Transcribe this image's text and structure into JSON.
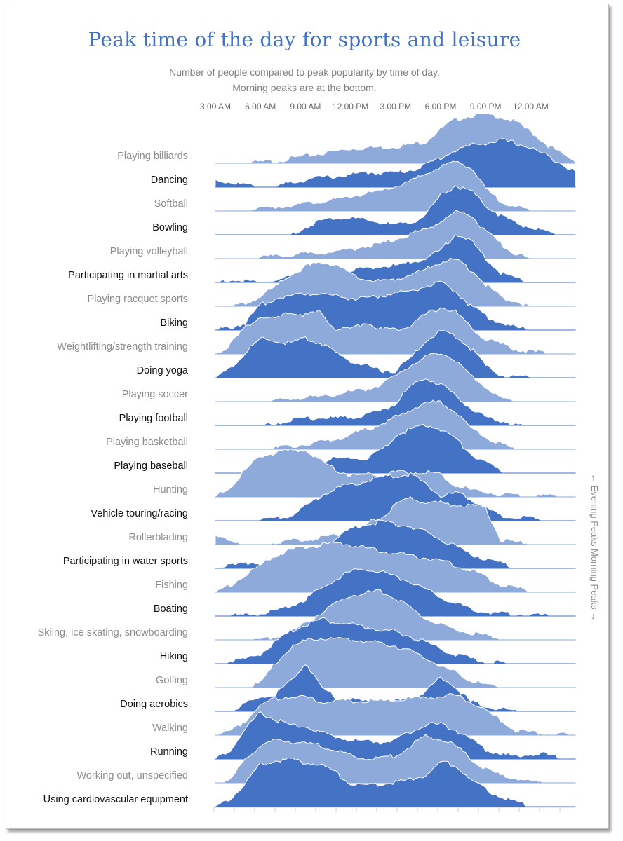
{
  "chart_data": {
    "type": "area",
    "title": "Peak time of the day for sports and leisure",
    "subtitle": [
      "Number of people compared to peak popularity by time of day.",
      "Morning peaks are at the bottom."
    ],
    "x_tick_labels": [
      "3.00 AM",
      "6.00 AM",
      "9.00 AM",
      "12.00 PM",
      "3.00 PM",
      "6.00 PM",
      "9.00 PM",
      "12.00 AM"
    ],
    "x_hours_from_3am": [
      0,
      1,
      2,
      3,
      4,
      5,
      6,
      7,
      8,
      9,
      10,
      11,
      12,
      13,
      14,
      15,
      16,
      17,
      18,
      19,
      20,
      21,
      22,
      23,
      24
    ],
    "xlim_hours_from_3am": [
      0,
      24
    ],
    "side_label": "← Evening Peaks  Morning Peaks →",
    "colors": {
      "light": "#8eaadb",
      "dark": "#4472c4"
    },
    "series": [
      {
        "name": "Playing billiards",
        "values": [
          0,
          0,
          0.02,
          0.02,
          0.05,
          0.1,
          0.15,
          0.2,
          0.25,
          0.3,
          0.32,
          0.33,
          0.35,
          0.38,
          0.45,
          0.7,
          0.9,
          0.97,
          1,
          0.95,
          0.85,
          0.65,
          0.4,
          0.2,
          0.05
        ]
      },
      {
        "name": "Dancing",
        "values": [
          0.15,
          0.1,
          0.05,
          0,
          0,
          0.1,
          0.15,
          0.2,
          0.22,
          0.25,
          0.3,
          0.3,
          0.3,
          0.35,
          0.45,
          0.6,
          0.75,
          0.85,
          0.9,
          0.95,
          0.9,
          0.8,
          0.65,
          0.5,
          0.3
        ]
      },
      {
        "name": "Softball",
        "values": [
          0,
          0,
          0.02,
          0.05,
          0.08,
          0.12,
          0.15,
          0.2,
          0.22,
          0.3,
          0.35,
          0.4,
          0.5,
          0.6,
          0.75,
          0.9,
          1,
          0.9,
          0.45,
          0.2,
          0.1,
          0,
          0,
          0,
          0
        ]
      },
      {
        "name": "Bowling",
        "values": [
          0,
          0,
          0,
          0,
          0,
          0,
          0.15,
          0.3,
          0.35,
          0.35,
          0.3,
          0.25,
          0.2,
          0.25,
          0.4,
          0.8,
          1,
          0.9,
          0.6,
          0.4,
          0.25,
          0.15,
          0.05,
          0,
          0
        ]
      },
      {
        "name": "Playing volleyball",
        "values": [
          0,
          0,
          0,
          0.02,
          0.05,
          0.08,
          0.1,
          0.12,
          0.15,
          0.2,
          0.25,
          0.3,
          0.4,
          0.5,
          0.6,
          0.75,
          0.95,
          0.9,
          0.55,
          0.3,
          0.1,
          0,
          0,
          0,
          0
        ]
      },
      {
        "name": "Participating in martial arts",
        "values": [
          0,
          0.05,
          0.03,
          0,
          0.05,
          0.1,
          0.12,
          0.15,
          0.2,
          0.25,
          0.3,
          0.32,
          0.35,
          0.4,
          0.5,
          0.65,
          1,
          0.85,
          0.5,
          0.2,
          0.1,
          0,
          0,
          0,
          0
        ]
      },
      {
        "name": "Playing racquet sports",
        "values": [
          0,
          0,
          0.05,
          0.2,
          0.4,
          0.65,
          0.8,
          0.9,
          0.85,
          0.65,
          0.55,
          0.5,
          0.55,
          0.65,
          0.75,
          0.9,
          0.95,
          0.75,
          0.45,
          0.2,
          0.1,
          0,
          0,
          0,
          0
        ]
      },
      {
        "name": "Biking",
        "values": [
          0,
          0.05,
          0.15,
          0.5,
          0.65,
          0.7,
          0.75,
          0.75,
          0.7,
          0.65,
          0.65,
          0.7,
          0.75,
          0.8,
          0.9,
          0.95,
          0.8,
          0.5,
          0.3,
          0.15,
          0.05,
          0.02,
          0,
          0,
          0
        ]
      },
      {
        "name": "Weightlifting/strength training",
        "values": [
          0,
          0.2,
          0.55,
          0.75,
          0.7,
          0.85,
          0.8,
          0.85,
          0.5,
          0.5,
          0.65,
          0.5,
          0.5,
          0.6,
          0.8,
          0.95,
          0.85,
          0.55,
          0.3,
          0.2,
          0.1,
          0.05,
          0.02,
          0.01,
          0
        ]
      },
      {
        "name": "Doing yoga",
        "values": [
          0,
          0.2,
          0.5,
          0.8,
          0.75,
          0.7,
          0.8,
          0.7,
          0.5,
          0.35,
          0.25,
          0.15,
          0.15,
          0.4,
          0.75,
          0.95,
          0.85,
          0.6,
          0.25,
          0.05,
          0.02,
          0.01,
          0,
          0,
          0
        ]
      },
      {
        "name": "Playing soccer",
        "values": [
          0,
          0,
          0,
          0,
          0.02,
          0.05,
          0.08,
          0.1,
          0.15,
          0.2,
          0.25,
          0.35,
          0.5,
          0.75,
          0.9,
          1,
          0.85,
          0.55,
          0.3,
          0.05,
          0,
          0,
          0,
          0,
          0
        ]
      },
      {
        "name": "Playing football",
        "values": [
          0,
          0,
          0,
          0,
          0.05,
          0.1,
          0.15,
          0.15,
          0.15,
          0.18,
          0.2,
          0.3,
          0.45,
          0.8,
          0.95,
          0.85,
          0.6,
          0.35,
          0.15,
          0.1,
          0.02,
          0,
          0,
          0,
          0
        ]
      },
      {
        "name": "Playing basketball",
        "values": [
          0,
          0,
          0,
          0,
          0.03,
          0.06,
          0.1,
          0.15,
          0.2,
          0.3,
          0.4,
          0.5,
          0.65,
          0.8,
          0.95,
          0.95,
          0.75,
          0.45,
          0.25,
          0.1,
          0,
          0,
          0,
          0,
          0
        ]
      },
      {
        "name": "Playing baseball",
        "values": [
          0,
          0,
          0,
          0,
          0,
          0.1,
          0.2,
          0.25,
          0.3,
          0.3,
          0.3,
          0.45,
          0.75,
          0.9,
          1,
          0.9,
          0.7,
          0.4,
          0.2,
          0.05,
          0,
          0,
          0,
          0,
          0
        ]
      },
      {
        "name": "Hunting",
        "values": [
          0,
          0.2,
          0.55,
          0.85,
          0.9,
          0.95,
          0.95,
          0.75,
          0.55,
          0.45,
          0.45,
          0.45,
          0.5,
          0.5,
          0.5,
          0.45,
          0.25,
          0.15,
          0.1,
          0.05,
          0.03,
          0.02,
          0.02,
          0.01,
          0
        ]
      },
      {
        "name": "Vehicle touring/racing",
        "values": [
          0,
          0,
          0,
          0.02,
          0.05,
          0.1,
          0.3,
          0.5,
          0.65,
          0.75,
          0.8,
          0.9,
          0.9,
          0.95,
          0.75,
          0.5,
          0.55,
          0.45,
          0.25,
          0.1,
          0.08,
          0.05,
          0.02,
          0,
          0
        ]
      },
      {
        "name": "Rollerblading",
        "values": [
          0.15,
          0.1,
          0,
          0,
          0.05,
          0.08,
          0.1,
          0.15,
          0.2,
          0.25,
          0.4,
          0.55,
          0.8,
          0.95,
          0.85,
          0.85,
          0.8,
          0.8,
          0.75,
          0.1,
          0.05,
          0.02,
          0,
          0,
          0
        ]
      },
      {
        "name": "Participating in water sports",
        "values": [
          0,
          0.05,
          0.1,
          0.12,
          0.15,
          0.2,
          0.3,
          0.45,
          0.6,
          0.8,
          0.9,
          0.95,
          0.9,
          0.85,
          0.75,
          0.6,
          0.45,
          0.3,
          0.2,
          0.1,
          0,
          0,
          0,
          0,
          0
        ]
      },
      {
        "name": "Fishing",
        "values": [
          0,
          0.15,
          0.35,
          0.55,
          0.75,
          0.85,
          0.92,
          0.97,
          1,
          0.97,
          0.9,
          0.85,
          0.8,
          0.75,
          0.7,
          0.65,
          0.55,
          0.45,
          0.3,
          0.15,
          0.08,
          0.02,
          0,
          0,
          0
        ]
      },
      {
        "name": "Boating",
        "values": [
          0.02,
          0.02,
          0.02,
          0.05,
          0.1,
          0.2,
          0.35,
          0.55,
          0.75,
          0.9,
          0.95,
          0.9,
          0.8,
          0.7,
          0.55,
          0.4,
          0.25,
          0.15,
          0.1,
          0.05,
          0.05,
          0.03,
          0.02,
          0,
          0
        ]
      },
      {
        "name": "Skiing, ice skating, snowboarding",
        "values": [
          0,
          0,
          0,
          0.02,
          0.05,
          0.15,
          0.35,
          0.55,
          0.75,
          0.9,
          0.95,
          1,
          0.85,
          0.65,
          0.45,
          0.3,
          0.2,
          0.15,
          0.1,
          0.05,
          0,
          0,
          0,
          0,
          0
        ]
      },
      {
        "name": "Hiking",
        "values": [
          0,
          0.05,
          0.1,
          0.2,
          0.45,
          0.65,
          0.8,
          0.9,
          0.85,
          0.8,
          0.75,
          0.7,
          0.65,
          0.55,
          0.45,
          0.3,
          0.2,
          0.1,
          0.05,
          0.02,
          0,
          0,
          0,
          0,
          0
        ]
      },
      {
        "name": "Golfing",
        "values": [
          0,
          0,
          0,
          0.1,
          0.5,
          0.8,
          0.95,
          1,
          1,
          0.98,
          0.95,
          0.9,
          0.85,
          0.75,
          0.6,
          0.45,
          0.3,
          0.15,
          0.05,
          0,
          0,
          0,
          0,
          0,
          0
        ]
      },
      {
        "name": "Doing aerobics",
        "values": [
          0,
          0,
          0.15,
          0.3,
          0.35,
          0.6,
          1,
          0.5,
          0.3,
          0.25,
          0.2,
          0.2,
          0.2,
          0.25,
          0.4,
          0.7,
          0.5,
          0.2,
          0.1,
          0.05,
          0.02,
          0,
          0,
          0,
          0
        ]
      },
      {
        "name": "Walking",
        "values": [
          0,
          0.1,
          0.3,
          0.6,
          0.75,
          0.8,
          0.75,
          0.7,
          0.7,
          0.7,
          0.7,
          0.7,
          0.72,
          0.75,
          0.75,
          0.8,
          0.8,
          0.7,
          0.5,
          0.3,
          0.1,
          0.05,
          0.03,
          0.02,
          0
        ]
      },
      {
        "name": "Running",
        "values": [
          0,
          0.2,
          0.6,
          0.95,
          0.8,
          0.7,
          0.65,
          0.55,
          0.45,
          0.4,
          0.35,
          0.35,
          0.4,
          0.55,
          0.7,
          0.7,
          0.6,
          0.4,
          0.2,
          0.1,
          0.05,
          0.1,
          0.1,
          0,
          0
        ]
      },
      {
        "name": "Working out, unspecified",
        "values": [
          0.01,
          0.05,
          0.5,
          0.75,
          0.85,
          0.85,
          0.8,
          0.75,
          0.65,
          0.55,
          0.5,
          0.5,
          0.55,
          0.75,
          0.95,
          0.9,
          0.75,
          0.5,
          0.3,
          0.15,
          0.1,
          0.02,
          0.01,
          0.01,
          0
        ]
      },
      {
        "name": "Using cardiovascular equipment",
        "values": [
          0,
          0.15,
          0.5,
          0.85,
          0.95,
          0.95,
          0.9,
          0.85,
          0.7,
          0.45,
          0.45,
          0.45,
          0.5,
          0.55,
          0.65,
          0.9,
          0.85,
          0.55,
          0.35,
          0.2,
          0.1,
          0.02,
          0,
          0,
          0
        ]
      }
    ]
  }
}
